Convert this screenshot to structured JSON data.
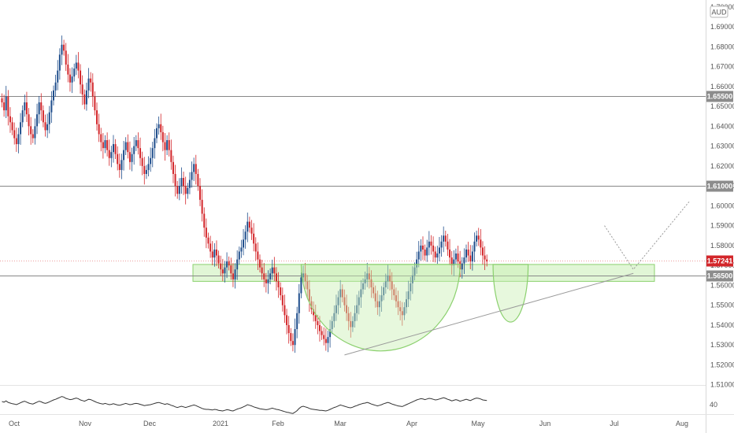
{
  "currency_label": "AUD",
  "rsi_tick": "40",
  "colors": {
    "up": "#1f4e8c",
    "down": "#d3262a",
    "hline": "#888888",
    "zone_fill": "#c9efb4",
    "zone_stroke": "#8bd06e",
    "price_badge": "#d3262a"
  },
  "chart_data": {
    "type": "candlestick",
    "title": "",
    "ylim": [
      1.5095,
      1.7015
    ],
    "y_ticks": [
      "1.70000",
      "1.69000",
      "1.68000",
      "1.67000",
      "1.66000",
      "1.65000",
      "1.64000",
      "1.63000",
      "1.62000",
      "1.61000",
      "1.60000",
      "1.59000",
      "1.58000",
      "1.57000",
      "1.56000",
      "1.55000",
      "1.54000",
      "1.53000",
      "1.52000",
      "1.51000"
    ],
    "x_labels": [
      "Oct",
      "Nov",
      "Dec",
      "2021",
      "Feb",
      "Mar",
      "Apr",
      "May",
      "Jun",
      "Jul",
      "Aug"
    ],
    "horizontal_levels": [
      {
        "value": "1.65500",
        "price": 1.655
      },
      {
        "value": "1.61000",
        "price": 1.61
      },
      {
        "value": "1.56500",
        "price": 1.565
      }
    ],
    "current_price": {
      "value": "1.57241",
      "price": 1.57241
    },
    "support_zone": {
      "low": 1.562,
      "high": 1.5705
    },
    "closes": [
      1.652,
      1.648,
      1.655,
      1.645,
      1.642,
      1.638,
      1.634,
      1.631,
      1.636,
      1.642,
      1.648,
      1.652,
      1.646,
      1.64,
      1.636,
      1.634,
      1.64,
      1.646,
      1.652,
      1.648,
      1.642,
      1.638,
      1.641,
      1.647,
      1.653,
      1.658,
      1.662,
      1.668,
      1.676,
      1.681,
      1.678,
      1.671,
      1.666,
      1.662,
      1.665,
      1.669,
      1.672,
      1.668,
      1.661,
      1.656,
      1.651,
      1.658,
      1.664,
      1.662,
      1.655,
      1.648,
      1.641,
      1.636,
      1.632,
      1.629,
      1.633,
      1.628,
      1.624,
      1.627,
      1.631,
      1.626,
      1.621,
      1.618,
      1.623,
      1.628,
      1.632,
      1.627,
      1.622,
      1.626,
      1.63,
      1.633,
      1.629,
      1.624,
      1.62,
      1.616,
      1.618,
      1.621,
      1.624,
      1.629,
      1.634,
      1.639,
      1.641,
      1.637,
      1.632,
      1.628,
      1.633,
      1.628,
      1.622,
      1.616,
      1.61,
      1.606,
      1.61,
      1.614,
      1.61,
      1.606,
      1.609,
      1.613,
      1.617,
      1.621,
      1.616,
      1.61,
      1.603,
      1.596,
      1.589,
      1.584,
      1.581,
      1.577,
      1.574,
      1.578,
      1.575,
      1.571,
      1.568,
      1.566,
      1.569,
      1.572,
      1.57,
      1.566,
      1.563,
      1.568,
      1.573,
      1.577,
      1.579,
      1.583,
      1.587,
      1.592,
      1.589,
      1.586,
      1.581,
      1.577,
      1.573,
      1.569,
      1.566,
      1.563,
      1.561,
      1.563,
      1.566,
      1.569,
      1.566,
      1.562,
      1.559,
      1.555,
      1.55,
      1.545,
      1.54,
      1.536,
      1.532,
      1.53,
      1.538,
      1.546,
      1.556,
      1.564,
      1.566,
      1.562,
      1.558,
      1.552,
      1.548,
      1.545,
      1.542,
      1.54,
      1.537,
      1.535,
      1.533,
      1.531,
      1.534,
      1.538,
      1.542,
      1.546,
      1.55,
      1.554,
      1.558,
      1.554,
      1.55,
      1.546,
      1.542,
      1.539,
      1.542,
      1.546,
      1.55,
      1.554,
      1.558,
      1.561,
      1.563,
      1.566,
      1.563,
      1.559,
      1.556,
      1.552,
      1.549,
      1.552,
      1.555,
      1.559,
      1.562,
      1.565,
      1.562,
      1.558,
      1.555,
      1.552,
      1.549,
      1.547,
      1.545,
      1.549,
      1.553,
      1.557,
      1.561,
      1.565,
      1.569,
      1.573,
      1.577,
      1.58,
      1.578,
      1.575,
      1.579,
      1.582,
      1.58,
      1.577,
      1.574,
      1.576,
      1.579,
      1.582,
      1.585,
      1.582,
      1.578,
      1.574,
      1.57,
      1.573,
      1.576,
      1.572,
      1.568,
      1.571,
      1.574,
      1.578,
      1.575,
      1.572,
      1.577,
      1.582,
      1.585,
      1.583,
      1.579,
      1.575,
      1.573,
      1.572
    ],
    "rsi": [
      50,
      48,
      52,
      47,
      45,
      43,
      42,
      40,
      43,
      46,
      49,
      51,
      48,
      45,
      43,
      42,
      45,
      48,
      51,
      49,
      46,
      44,
      46,
      49,
      52,
      55,
      57,
      60,
      63,
      66,
      64,
      60,
      58,
      56,
      57,
      59,
      61,
      59,
      55,
      53,
      51,
      54,
      57,
      56,
      53,
      50,
      47,
      45,
      43,
      42,
      44,
      42,
      40,
      41,
      43,
      41,
      39,
      38,
      40,
      42,
      44,
      42,
      40,
      41,
      43,
      44,
      43,
      41,
      39,
      37,
      38,
      39,
      40,
      42,
      44,
      46,
      47,
      45,
      43,
      41,
      43,
      41,
      38,
      36,
      33,
      31,
      33,
      35,
      33,
      31,
      33,
      35,
      37,
      39,
      37,
      34,
      31,
      28,
      26,
      25,
      25,
      24,
      23,
      25,
      24,
      22,
      21,
      20,
      22,
      24,
      23,
      21,
      20,
      23,
      26,
      28,
      30,
      33,
      36,
      40,
      38,
      36,
      33,
      31,
      29,
      27,
      26,
      25,
      24,
      25,
      27,
      29,
      27,
      25,
      24,
      22,
      20,
      18,
      16,
      15,
      13,
      12,
      16,
      21,
      28,
      33,
      35,
      33,
      31,
      28,
      26,
      25,
      24,
      23,
      22,
      22,
      21,
      20,
      22,
      25,
      28,
      31,
      33,
      36,
      39,
      37,
      35,
      33,
      31,
      30,
      32,
      35,
      37,
      40,
      42,
      44,
      45,
      47,
      45,
      42,
      40,
      38,
      36,
      38,
      40,
      43,
      45,
      47,
      45,
      42,
      40,
      38,
      36,
      35,
      34,
      37,
      40,
      43,
      46,
      49,
      52,
      55,
      57,
      59,
      58,
      56,
      58,
      60,
      59,
      57,
      55,
      56,
      58,
      60,
      62,
      60,
      57,
      55,
      52,
      54,
      56,
      54,
      51,
      53,
      55,
      57,
      55,
      53,
      56,
      59,
      61,
      60,
      58,
      55,
      54,
      53
    ]
  },
  "drawings": {
    "cup": {
      "start_index": 145,
      "end_index": 222,
      "bottom_price": 1.527
    },
    "handle": {
      "start_index": 238,
      "end_index": 255,
      "bottom_price": 1.5415
    },
    "trendline": {
      "start_index": 166,
      "start_price": 1.525,
      "end_index": 306,
      "end_price": 1.566
    },
    "projection": {
      "from_index": 292,
      "from_price": 1.59,
      "via_index": 306,
      "via_price": 1.568,
      "to_index": 333,
      "to_price": 1.602
    }
  }
}
